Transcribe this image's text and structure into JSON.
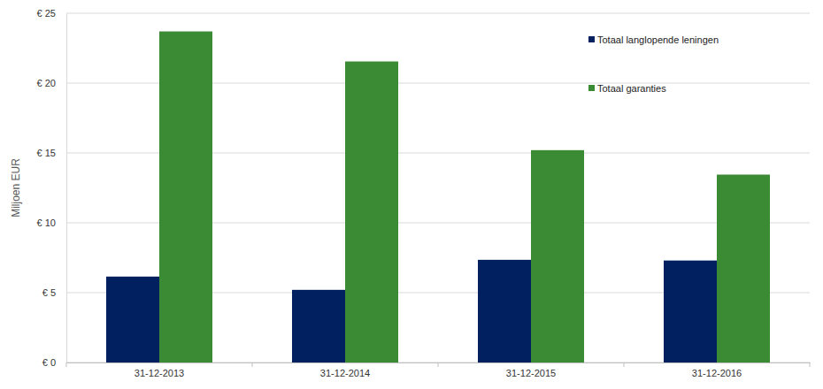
{
  "chart_data": {
    "type": "bar",
    "y_label": "Miljoen EUR",
    "categories": [
      "31-12-2013",
      "31-12-2014",
      "31-12-2015",
      "31-12-2016"
    ],
    "series": [
      {
        "name": "Totaal langlopende leningen",
        "color": "#002060",
        "values": [
          6.15,
          5.2,
          7.35,
          7.3
        ]
      },
      {
        "name": "Totaal garanties",
        "color": "#3b8a34",
        "values": [
          23.7,
          21.55,
          15.2,
          13.45
        ]
      }
    ],
    "ylim": [
      0,
      25
    ],
    "yticks": [
      {
        "value": 0,
        "label": "€ 0"
      },
      {
        "value": 5,
        "label": "€ 5"
      },
      {
        "value": 10,
        "label": "€ 10"
      },
      {
        "value": 15,
        "label": "€ 15"
      },
      {
        "value": 20,
        "label": "€ 20"
      },
      {
        "value": 25,
        "label": "€ 25"
      }
    ],
    "grid": true,
    "legend": "top-right"
  }
}
